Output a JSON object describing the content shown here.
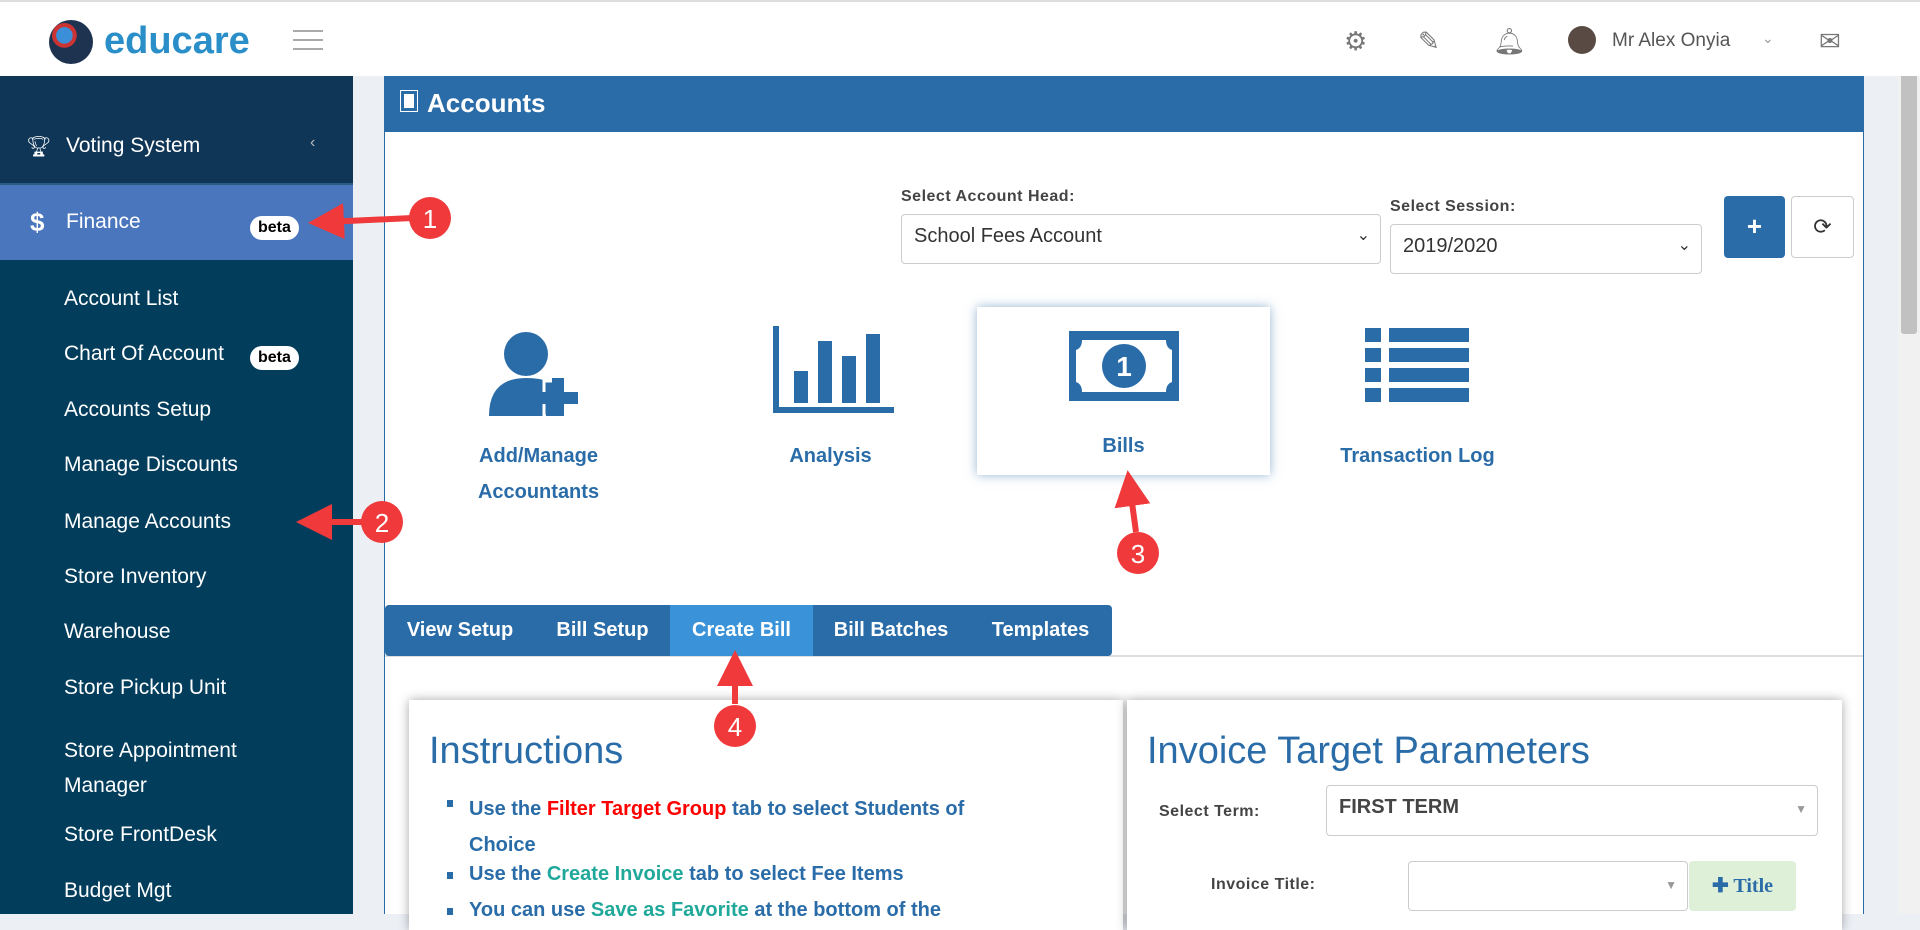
{
  "header": {
    "brand": "educare",
    "user_name": "Mr Alex Onyia"
  },
  "sidebar": {
    "items": [
      {
        "label": "Voting System",
        "icon": "trophy-icon"
      },
      {
        "label": "Finance",
        "icon": "dollar-icon",
        "badge": "beta",
        "active": true
      }
    ],
    "finance_sub": [
      "Account List",
      "Chart Of Account",
      "Accounts Setup",
      "Manage Discounts",
      "Manage Accounts",
      "Store Inventory",
      "Warehouse",
      "Store Pickup Unit",
      "Store Appointment Manager",
      "Store FrontDesk",
      "Budget Mgt"
    ],
    "chart_badge": "beta"
  },
  "page": {
    "title": "Accounts",
    "account_head_label": "Select Account Head:",
    "account_head_value": "School Fees Account",
    "session_label": "Select Session:",
    "session_value": "2019/2020",
    "add_label": "+",
    "refresh_icon": "refresh-icon",
    "tiles": [
      "Add/Manage Accountants",
      "Analysis",
      "Bills",
      "Transaction Log"
    ],
    "tabs": [
      "View Setup",
      "Bill Setup",
      "Create Bill",
      "Bill Batches",
      "Templates"
    ],
    "active_tab": "Create Bill"
  },
  "instructions": {
    "title": "Instructions",
    "lines": [
      {
        "pre": "Use the ",
        "hl": "Filter Target Group",
        "post": " tab to select Students of",
        "cont": "Choice"
      },
      {
        "pre": "Use the ",
        "hl": "Create Invoice",
        "post": " tab to select Fee Items"
      },
      {
        "pre": "You can use ",
        "hl": "Save as Favorite",
        "post": " at the bottom of the"
      }
    ]
  },
  "invoice": {
    "title": "Invoice Target Parameters",
    "term_label": "Select Term:",
    "term_value": "FIRST TERM",
    "title_label": "Invoice Title:",
    "title_value": "",
    "add_title": "Title"
  },
  "annotations": [
    "1",
    "2",
    "3",
    "4"
  ],
  "colors": {
    "primary": "#2a6ca8",
    "sidebar": "#0f3557",
    "active": "#4a76bd",
    "red": "#f0393b",
    "teal": "#20a99a"
  }
}
